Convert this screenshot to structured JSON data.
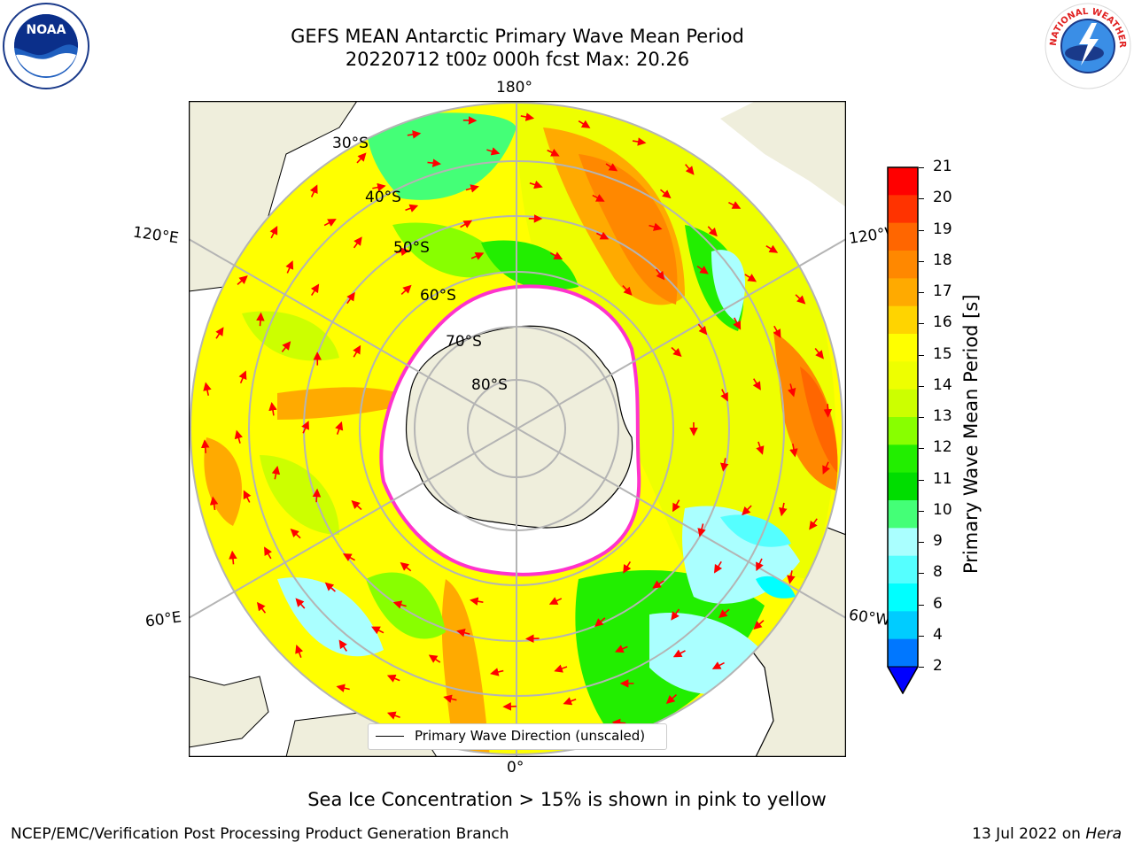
{
  "title": {
    "line1": "GEFS MEAN Antarctic Primary Wave Mean Period",
    "line2": "20220712 t00z 000h fcst   Max: 20.26"
  },
  "logos": {
    "left": {
      "icon": "noaa-logo-icon",
      "text": "NOAA"
    },
    "right": {
      "icon": "nws-logo-icon",
      "text": "NATIONAL WEATHER SERVICE"
    }
  },
  "map": {
    "longitude_labels": {
      "top": "180°",
      "bottom": "0°",
      "upper_left": "120°E",
      "upper_right": "120°W",
      "lower_left": "60°E",
      "lower_right": "60°W"
    },
    "latitude_labels": [
      "30°S",
      "40°S",
      "50°S",
      "60°S",
      "70°S",
      "80°S"
    ],
    "legend_text": "Primary Wave Direction (unscaled)",
    "colors": {
      "land": "#efeedc",
      "sea_ice_edge": "#ff33cc",
      "arrows": "#ff0000",
      "graticule": "#b4b4b4"
    }
  },
  "colorbar": {
    "label": "Primary Wave Mean Period [s]",
    "ticks": [
      "21",
      "20",
      "19",
      "18",
      "17",
      "16",
      "15",
      "14",
      "13",
      "12",
      "11",
      "10",
      "9",
      "8",
      "6",
      "4",
      "2"
    ],
    "colors_top_to_bottom": [
      "#ff0000",
      "#ff3300",
      "#ff6600",
      "#ff8800",
      "#ffaa00",
      "#ffd400",
      "#ffff00",
      "#eeff00",
      "#ccff00",
      "#88ff00",
      "#22ee00",
      "#00dd00",
      "#44ff77",
      "#aaffff",
      "#55ffff",
      "#00ffff",
      "#00ccff",
      "#0077ff"
    ],
    "under_color": "#0000ff"
  },
  "notes": {
    "sea_ice": "Sea Ice Concentration > 15% is shown in pink to yellow"
  },
  "footer": {
    "left": "NCEP/EMC/Verification Post Processing Product Generation Branch",
    "right_date": "13 Jul 2022 on ",
    "right_host": "Hera"
  }
}
